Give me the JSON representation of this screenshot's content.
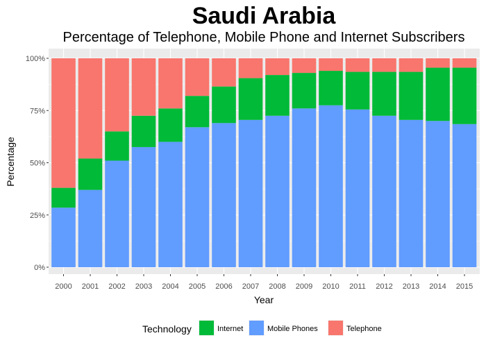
{
  "chart_data": {
    "type": "bar",
    "stacked": true,
    "title": "Saudi Arabia",
    "subtitle": "Percentage of Telephone, Mobile Phone and Internet Subscribers",
    "xlabel": "Year",
    "ylabel": "Percentage",
    "ylim": [
      0,
      100
    ],
    "y_ticks": [
      0,
      25,
      50,
      75,
      100
    ],
    "y_tick_labels": [
      "0%",
      "25%",
      "50%",
      "75%",
      "100%"
    ],
    "categories": [
      "2000",
      "2001",
      "2002",
      "2003",
      "2004",
      "2005",
      "2006",
      "2007",
      "2008",
      "2009",
      "2010",
      "2011",
      "2012",
      "2013",
      "2014",
      "2015"
    ],
    "series": [
      {
        "name": "Mobile Phones",
        "color": "#619cff",
        "values": [
          28.5,
          37,
          51,
          57.5,
          60,
          67,
          69,
          70.5,
          72.5,
          76,
          77.5,
          75.5,
          72.5,
          70.5,
          70,
          68.5
        ]
      },
      {
        "name": "Internet",
        "color": "#00ba38",
        "values": [
          9.5,
          15,
          14,
          15,
          16,
          15,
          17.5,
          20,
          19.5,
          17,
          16.5,
          18,
          21,
          23,
          25.5,
          27
        ]
      },
      {
        "name": "Telephone",
        "color": "#f8766d",
        "values": [
          62,
          48,
          35,
          27.5,
          24,
          18,
          13.5,
          9.5,
          8,
          7,
          6,
          6.5,
          6.5,
          6.5,
          4.5,
          4.5
        ]
      }
    ],
    "legend": {
      "title": "Technology",
      "position": "bottom",
      "items": [
        {
          "label": "Internet",
          "color": "#00ba38"
        },
        {
          "label": "Mobile Phones",
          "color": "#619cff"
        },
        {
          "label": "Telephone",
          "color": "#f8766d"
        }
      ]
    },
    "grid": true,
    "panel_background": "#ebebeb",
    "gridline_color": "#ffffff"
  }
}
